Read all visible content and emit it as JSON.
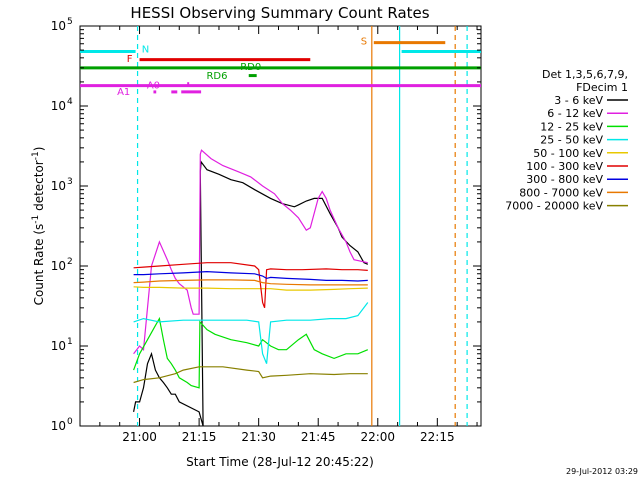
{
  "chart_data": {
    "type": "line",
    "title": "HESSI Observing Summary Count Rates",
    "xlabel": "Start Time (28-Jul-12 20:45:22)",
    "ylabel_main": "Count Rate (s",
    "ylabel_sup": "-1",
    "ylabel_mid": " detector",
    "ylabel_end": ")",
    "ylog": true,
    "ylim": [
      1,
      100000
    ],
    "xlim_min": [
      0,
      101
    ],
    "x_ticks": [
      {
        "min": 15,
        "label": "21:00"
      },
      {
        "min": 30,
        "label": "21:15"
      },
      {
        "min": 45,
        "label": "21:30"
      },
      {
        "min": 60,
        "label": "21:45"
      },
      {
        "min": 75,
        "label": "22:00"
      },
      {
        "min": 90,
        "label": "22:15"
      }
    ],
    "y_ticks": [
      {
        "value": 1,
        "base": "10",
        "exp": "0"
      },
      {
        "value": 10,
        "base": "10",
        "exp": "1"
      },
      {
        "value": 100,
        "base": "10",
        "exp": "2"
      },
      {
        "value": 1000,
        "base": "10",
        "exp": "3"
      },
      {
        "value": 10000,
        "base": "10",
        "exp": "4"
      },
      {
        "value": 100000,
        "base": "10",
        "exp": "5"
      }
    ],
    "legend": {
      "header": [
        "Det 1,3,5,6,7,9,",
        "FDecim 1"
      ],
      "entries": [
        {
          "label": "3 - 6 keV",
          "color": "#000000"
        },
        {
          "label": "6 - 12 keV",
          "color": "#e020e0"
        },
        {
          "label": "12 - 25 keV",
          "color": "#00e000"
        },
        {
          "label": "25 - 50 keV",
          "color": "#00e8e8"
        },
        {
          "label": "50 - 100 keV",
          "color": "#e8c800"
        },
        {
          "label": "100 - 300 keV",
          "color": "#e00000"
        },
        {
          "label": "300 - 800 keV",
          "color": "#0000e0"
        },
        {
          "label": "800 - 7000 keV",
          "color": "#e87800"
        },
        {
          "label": "7000 - 20000 keV",
          "color": "#888000"
        }
      ]
    },
    "series": [
      {
        "name": "3 - 6 keV",
        "color": "#000000",
        "points": [
          [
            13.5,
            1.5
          ],
          [
            14,
            2
          ],
          [
            15,
            2
          ],
          [
            16,
            3
          ],
          [
            17,
            6
          ],
          [
            18,
            8
          ],
          [
            19,
            5
          ],
          [
            20,
            4
          ],
          [
            21,
            3.5
          ],
          [
            22,
            3
          ],
          [
            23,
            2.5
          ],
          [
            24,
            2.5
          ],
          [
            25,
            2
          ],
          [
            30,
            1.5
          ],
          [
            31,
            1
          ],
          [
            30.3,
            1500
          ],
          [
            30.5,
            2000
          ],
          [
            32,
            1600
          ],
          [
            35,
            1400
          ],
          [
            38,
            1200
          ],
          [
            41,
            1100
          ],
          [
            44,
            900
          ],
          [
            48,
            700
          ],
          [
            51,
            600
          ],
          [
            54,
            550
          ],
          [
            55,
            580
          ],
          [
            57,
            650
          ],
          [
            59,
            700
          ],
          [
            61,
            700
          ],
          [
            63,
            450
          ],
          [
            65,
            300
          ],
          [
            66,
            230
          ],
          [
            68,
            180
          ],
          [
            70,
            150
          ],
          [
            71.5,
            110
          ],
          [
            72.5,
            105
          ]
        ]
      },
      {
        "name": "6 - 12 keV",
        "color": "#e020e0",
        "points": [
          [
            13.5,
            8
          ],
          [
            15,
            10
          ],
          [
            16,
            9
          ],
          [
            18,
            100
          ],
          [
            20,
            200
          ],
          [
            22,
            120
          ],
          [
            23,
            90
          ],
          [
            24,
            70
          ],
          [
            25,
            60
          ],
          [
            27,
            50
          ],
          [
            28,
            30
          ],
          [
            28.5,
            25
          ],
          [
            30,
            25
          ],
          [
            30.3,
            2500
          ],
          [
            30.6,
            2800
          ],
          [
            33,
            2200
          ],
          [
            36,
            1800
          ],
          [
            40,
            1500
          ],
          [
            43,
            1300
          ],
          [
            46,
            1000
          ],
          [
            49,
            800
          ],
          [
            51,
            600
          ],
          [
            53,
            500
          ],
          [
            55,
            400
          ],
          [
            57,
            280
          ],
          [
            58,
            300
          ],
          [
            60,
            700
          ],
          [
            61,
            850
          ],
          [
            62,
            700
          ],
          [
            63,
            500
          ],
          [
            65,
            300
          ],
          [
            67,
            200
          ],
          [
            68,
            150
          ],
          [
            69,
            120
          ],
          [
            72.5,
            110
          ]
        ]
      },
      {
        "name": "12 - 25 keV",
        "color": "#00e000",
        "points": [
          [
            13.5,
            5
          ],
          [
            15,
            8
          ],
          [
            17,
            12
          ],
          [
            19,
            18
          ],
          [
            20,
            22
          ],
          [
            21,
            12
          ],
          [
            22,
            7
          ],
          [
            23,
            6
          ],
          [
            24,
            5
          ],
          [
            25,
            4
          ],
          [
            27,
            3.5
          ],
          [
            28,
            3.2
          ],
          [
            30,
            3
          ],
          [
            30.2,
            20
          ],
          [
            32,
            16
          ],
          [
            34,
            14
          ],
          [
            38,
            12
          ],
          [
            42,
            11
          ],
          [
            45,
            10
          ],
          [
            46,
            12
          ],
          [
            48,
            10
          ],
          [
            50,
            9
          ],
          [
            52,
            9
          ],
          [
            55,
            12
          ],
          [
            57,
            14
          ],
          [
            59,
            9
          ],
          [
            61,
            8
          ],
          [
            64,
            7
          ],
          [
            67,
            8
          ],
          [
            70,
            8
          ],
          [
            72.5,
            9
          ]
        ]
      },
      {
        "name": "25 - 50 keV",
        "color": "#00e8e8",
        "points": [
          [
            13.5,
            20
          ],
          [
            16,
            22
          ],
          [
            20,
            20
          ],
          [
            26,
            21
          ],
          [
            30,
            21
          ],
          [
            36,
            21
          ],
          [
            42,
            21
          ],
          [
            45,
            20
          ],
          [
            46,
            8
          ],
          [
            47,
            6
          ],
          [
            48,
            20
          ],
          [
            52,
            21
          ],
          [
            58,
            21
          ],
          [
            63,
            22
          ],
          [
            67,
            22
          ],
          [
            70,
            24
          ],
          [
            72.5,
            35
          ]
        ]
      },
      {
        "name": "50 - 100 keV",
        "color": "#e8c800",
        "points": [
          [
            13.5,
            55
          ],
          [
            16,
            54
          ],
          [
            20,
            54
          ],
          [
            26,
            53
          ],
          [
            32,
            53
          ],
          [
            38,
            52
          ],
          [
            44,
            52
          ],
          [
            46,
            52
          ],
          [
            48,
            52
          ],
          [
            52,
            50
          ],
          [
            58,
            50
          ],
          [
            64,
            51
          ],
          [
            68,
            52
          ],
          [
            72.5,
            53
          ]
        ]
      },
      {
        "name": "100 - 300 keV",
        "color": "#e00000",
        "points": [
          [
            13.5,
            95
          ],
          [
            16,
            97
          ],
          [
            20,
            100
          ],
          [
            26,
            105
          ],
          [
            32,
            110
          ],
          [
            38,
            110
          ],
          [
            44,
            100
          ],
          [
            45,
            90
          ],
          [
            46,
            35
          ],
          [
            46.5,
            30
          ],
          [
            47,
            90
          ],
          [
            48,
            92
          ],
          [
            52,
            90
          ],
          [
            56,
            90
          ],
          [
            62,
            92
          ],
          [
            66,
            90
          ],
          [
            70,
            90
          ],
          [
            72.5,
            88
          ]
        ]
      },
      {
        "name": "300 - 800 keV",
        "color": "#0000e0",
        "points": [
          [
            13.5,
            78
          ],
          [
            16,
            78
          ],
          [
            20,
            80
          ],
          [
            26,
            82
          ],
          [
            32,
            85
          ],
          [
            38,
            82
          ],
          [
            44,
            80
          ],
          [
            46,
            75
          ],
          [
            47,
            70
          ],
          [
            48,
            72
          ],
          [
            52,
            70
          ],
          [
            58,
            68
          ],
          [
            62,
            66
          ],
          [
            66,
            66
          ],
          [
            70,
            65
          ],
          [
            72.5,
            66
          ]
        ]
      },
      {
        "name": "800 - 7000 keV",
        "color": "#e87800",
        "points": [
          [
            13.5,
            62
          ],
          [
            16,
            63
          ],
          [
            20,
            65
          ],
          [
            26,
            66
          ],
          [
            32,
            67
          ],
          [
            38,
            67
          ],
          [
            44,
            66
          ],
          [
            46,
            62
          ],
          [
            48,
            60
          ],
          [
            52,
            59
          ],
          [
            58,
            58
          ],
          [
            64,
            58
          ],
          [
            68,
            58
          ],
          [
            72.5,
            58
          ]
        ]
      },
      {
        "name": "7000 - 20000 keV",
        "color": "#888000",
        "points": [
          [
            13.5,
            3.5
          ],
          [
            16,
            3.8
          ],
          [
            20,
            4
          ],
          [
            24,
            4.5
          ],
          [
            26,
            5
          ],
          [
            30,
            5.5
          ],
          [
            36,
            5.5
          ],
          [
            42,
            5
          ],
          [
            45,
            4.8
          ],
          [
            46,
            4
          ],
          [
            48,
            4.2
          ],
          [
            52,
            4.3
          ],
          [
            58,
            4.5
          ],
          [
            64,
            4.4
          ],
          [
            68,
            4.5
          ],
          [
            72.5,
            4.5
          ]
        ]
      }
    ],
    "flag_bars": [
      {
        "label": "N",
        "color": "#00e8e8",
        "label_min": 16.5,
        "label_value": 52000,
        "segments": [
          [
            0,
            14
          ],
          [
            81,
            101
          ]
        ],
        "value": 48000
      },
      {
        "label": "F",
        "color": "#e00000",
        "label_min": 12.5,
        "label_value": 40000,
        "segments": [
          [
            15,
            58
          ]
        ],
        "value": 38000
      },
      {
        "label": "S",
        "color": "#e87800",
        "label_min": 71.5,
        "label_value": 66000,
        "segments": [
          [
            74,
            92
          ]
        ],
        "value": 62000
      },
      {
        "label": "RD0",
        "color": "#00a000",
        "label_min": 43,
        "label_value": 31500,
        "segments": [
          [
            0,
            101
          ]
        ],
        "value": 30000
      },
      {
        "label": "RD6",
        "color": "#00a000",
        "label_min": 34.5,
        "label_value": 24500,
        "segments": [
          [
            42.5,
            44.5
          ]
        ],
        "value": 24000
      },
      {
        "label": "A1",
        "color": "#e020e0",
        "label_min": 11,
        "label_value": 15500,
        "segments": [
          [
            0,
            101
          ]
        ],
        "value": 18000
      },
      {
        "label": "A0",
        "color": "#e020e0",
        "label_min": 18.5,
        "label_value": 18500,
        "segments": [
          [
            18.5,
            19.2
          ],
          [
            23,
            24.5
          ],
          [
            25.5,
            30.5
          ]
        ],
        "value": 15000
      },
      {
        "label": "",
        "color": "#e020e0",
        "label_min": 0,
        "label_value": 0,
        "segments": [
          [
            27,
            27.5
          ]
        ],
        "value": 19000
      }
    ],
    "vlines": [
      {
        "min": 14.5,
        "color": "#00e8e8",
        "dash": true
      },
      {
        "min": 73.5,
        "color": "#e87800",
        "dash": false
      },
      {
        "min": 80.5,
        "color": "#00e8e8",
        "dash": false
      },
      {
        "min": 94.5,
        "color": "#e87800",
        "dash": true
      },
      {
        "min": 97.5,
        "color": "#00e8e8",
        "dash": true
      }
    ],
    "timestamp": "29-Jul-2012 03:29"
  }
}
